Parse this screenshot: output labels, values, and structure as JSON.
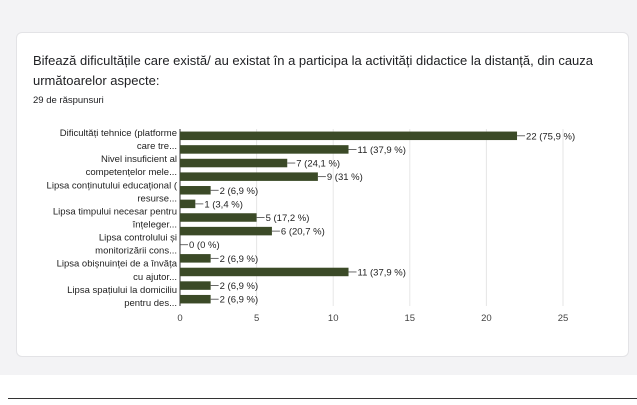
{
  "question": "Bifează dificultățile care există/ au existat în a participa la activități didactice la distanță, din cauza următoarelor aspecte:",
  "responses": "29 de răspunsuri",
  "chart_data": {
    "type": "bar",
    "orientation": "horizontal",
    "bar_color": "#3b4a27",
    "grid": true,
    "xlim": [
      0,
      25
    ],
    "x_ticks": [
      "0",
      "5",
      "10",
      "15",
      "20",
      "25"
    ],
    "categories": [
      "Dificultăți tehnice (platforme care tre...",
      "Nivel insuficient al competențelor mele...",
      "Lipsa conținutului educațional (resurse...",
      "Lipsa timpului necesar pentru înțeleger...",
      "Lipsa controlului și monitorizării cons...",
      "Lipsa obișnuinței de a învăța cu ajutor...",
      "Lipsa spațiului la domiciliu pentru des..."
    ],
    "bars": [
      {
        "value": 22,
        "label": "22 (75,9 %)"
      },
      {
        "value": 11,
        "label": "11 (37,9 %)"
      },
      {
        "value": 7,
        "label": "7 (24,1 %)"
      },
      {
        "value": 9,
        "label": "9 (31 %)"
      },
      {
        "value": 2,
        "label": "2 (6,9 %)"
      },
      {
        "value": 1,
        "label": "1 (3,4 %)"
      },
      {
        "value": 5,
        "label": "5 (17,2 %)"
      },
      {
        "value": 6,
        "label": "6 (20,7 %)"
      },
      {
        "value": 0,
        "label": "0 (0 %)"
      },
      {
        "value": 2,
        "label": "2 (6,9 %)"
      },
      {
        "value": 11,
        "label": "11 (37,9 %)"
      },
      {
        "value": 2,
        "label": "2 (6,9 %)"
      },
      {
        "value": 2,
        "label": "2 (6,9 %)"
      }
    ],
    "y_label_lines": [
      "Dificultăți tehnice (platforme",
      "care tre...",
      "Nivel insuficient al",
      "competențelor mele...",
      "Lipsa conținutului educațional (",
      "resurse...",
      "Lipsa timpului necesar pentru",
      "înțeleger...",
      "Lipsa controlului și",
      "monitorizării cons...",
      "Lipsa obișnuinței de a învăța",
      "cu ajutor...",
      "Lipsa spațiului la domiciliu",
      "pentru des..."
    ]
  }
}
